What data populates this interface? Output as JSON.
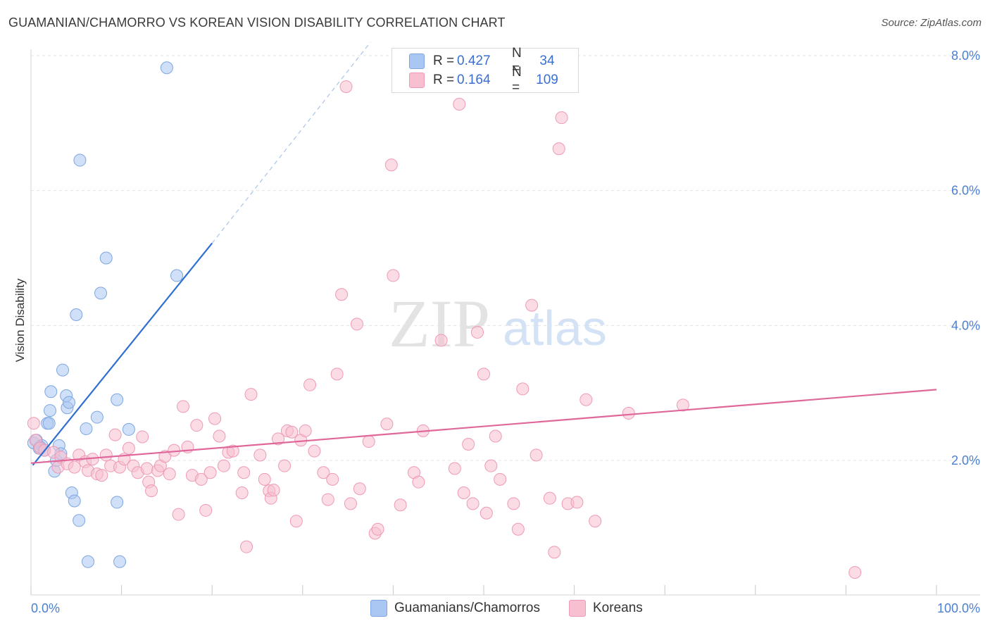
{
  "title": "GUAMANIAN/CHAMORRO VS KOREAN VISION DISABILITY CORRELATION CHART",
  "source": "Source: ZipAtlas.com",
  "watermark": {
    "zip": "ZIP",
    "atlas": "atlas"
  },
  "legend": {
    "rows": [
      {
        "r_label": "R =",
        "r_value": "0.427",
        "n_label": "N =",
        "n_value": "34",
        "color": "#a9c7f2",
        "border": "#7ea6e0"
      },
      {
        "r_label": "R =",
        "r_value": "0.164",
        "n_label": "N =",
        "n_value": "109",
        "color": "#f7bfd0",
        "border": "#ee9ab4"
      }
    ]
  },
  "bottom_legend": [
    {
      "label": "Guamanians/Chamorros",
      "color": "#a9c7f2",
      "border": "#7ea6e0"
    },
    {
      "label": "Koreans",
      "color": "#f7bfd0",
      "border": "#ee9ab4"
    }
  ],
  "chart_data": {
    "type": "scatter",
    "title": "GUAMANIAN/CHAMORRO VS KOREAN VISION DISABILITY CORRELATION CHART",
    "xlabel": "",
    "ylabel": "Vision Disability",
    "xlim": [
      0,
      100
    ],
    "ylim": [
      0,
      8.4
    ],
    "x_ticks": [
      "0.0%",
      "100.0%"
    ],
    "y_ticks": [
      {
        "value": 2,
        "label": "2.0%"
      },
      {
        "value": 4,
        "label": "4.0%"
      },
      {
        "value": 6,
        "label": "6.0%"
      },
      {
        "value": 8,
        "label": "8.0%"
      }
    ],
    "grid": true,
    "legend_position": "top-center",
    "series": [
      {
        "name": "Guamanians/Chamorros",
        "color": "#7ea6e0",
        "fill": "#a9c7f2",
        "trend": {
          "x0": 0.2,
          "y0": 1.93,
          "x1": 20,
          "y1": 5.22,
          "dashed_to_x": 37.5,
          "dashed_to_y": 8.2,
          "color": "#2f6fd0"
        },
        "points": [
          [
            0.3,
            2.26
          ],
          [
            0.6,
            2.3
          ],
          [
            0.9,
            2.18
          ],
          [
            1.2,
            2.22
          ],
          [
            1.5,
            2.15
          ],
          [
            1.8,
            2.55
          ],
          [
            2.1,
            2.74
          ],
          [
            2.2,
            3.02
          ],
          [
            2.6,
            1.84
          ],
          [
            2.8,
            2.0
          ],
          [
            3.1,
            2.22
          ],
          [
            3.3,
            2.1
          ],
          [
            3.5,
            3.34
          ],
          [
            3.9,
            2.96
          ],
          [
            4.0,
            2.78
          ],
          [
            4.2,
            2.86
          ],
          [
            4.5,
            1.52
          ],
          [
            4.8,
            1.4
          ],
          [
            5.0,
            4.16
          ],
          [
            5.3,
            1.11
          ],
          [
            5.4,
            6.45
          ],
          [
            6.1,
            2.47
          ],
          [
            6.3,
            0.5
          ],
          [
            7.3,
            2.64
          ],
          [
            7.7,
            4.48
          ],
          [
            8.3,
            5.0
          ],
          [
            9.5,
            2.9
          ],
          [
            9.5,
            1.38
          ],
          [
            9.8,
            0.5
          ],
          [
            10.8,
            2.46
          ],
          [
            15.0,
            7.82
          ],
          [
            16.1,
            4.74
          ],
          [
            1.0,
            2.2
          ],
          [
            2.0,
            2.55
          ]
        ]
      },
      {
        "name": "Koreans",
        "color": "#ee9ab4",
        "fill": "#f7bfd0",
        "trend": {
          "x0": 0,
          "y0": 1.96,
          "x1": 100,
          "y1": 3.05,
          "color": "#e0679a"
        },
        "points": [
          [
            0.3,
            2.55
          ],
          [
            0.5,
            2.3
          ],
          [
            1.0,
            2.18
          ],
          [
            1.5,
            2.15
          ],
          [
            2.5,
            2.12
          ],
          [
            3.0,
            1.9
          ],
          [
            3.3,
            2.05
          ],
          [
            4.0,
            1.95
          ],
          [
            4.8,
            1.9
          ],
          [
            5.3,
            2.08
          ],
          [
            6.0,
            1.98
          ],
          [
            6.3,
            1.85
          ],
          [
            6.8,
            2.02
          ],
          [
            7.3,
            1.8
          ],
          [
            7.8,
            1.78
          ],
          [
            8.3,
            2.08
          ],
          [
            8.8,
            1.92
          ],
          [
            9.3,
            2.38
          ],
          [
            9.8,
            1.9
          ],
          [
            10.3,
            2.02
          ],
          [
            10.8,
            2.18
          ],
          [
            11.3,
            1.92
          ],
          [
            11.8,
            1.82
          ],
          [
            12.3,
            2.35
          ],
          [
            12.8,
            1.88
          ],
          [
            13.0,
            1.68
          ],
          [
            13.3,
            1.55
          ],
          [
            14.0,
            1.85
          ],
          [
            14.3,
            1.92
          ],
          [
            14.8,
            2.06
          ],
          [
            15.3,
            1.8
          ],
          [
            15.8,
            2.15
          ],
          [
            16.3,
            1.2
          ],
          [
            16.8,
            2.8
          ],
          [
            17.3,
            2.2
          ],
          [
            17.8,
            1.78
          ],
          [
            18.3,
            2.52
          ],
          [
            18.8,
            1.72
          ],
          [
            19.3,
            1.26
          ],
          [
            19.8,
            1.82
          ],
          [
            20.3,
            2.62
          ],
          [
            20.8,
            2.36
          ],
          [
            21.3,
            1.92
          ],
          [
            21.8,
            2.12
          ],
          [
            22.3,
            2.14
          ],
          [
            23.3,
            1.52
          ],
          [
            23.5,
            1.82
          ],
          [
            23.8,
            0.72
          ],
          [
            24.3,
            2.98
          ],
          [
            25.3,
            2.08
          ],
          [
            25.8,
            1.72
          ],
          [
            26.3,
            1.55
          ],
          [
            26.5,
            1.44
          ],
          [
            26.8,
            1.56
          ],
          [
            27.3,
            2.32
          ],
          [
            28.0,
            1.92
          ],
          [
            28.3,
            2.44
          ],
          [
            28.8,
            2.42
          ],
          [
            29.3,
            1.1
          ],
          [
            29.8,
            2.3
          ],
          [
            30.3,
            2.44
          ],
          [
            30.8,
            3.12
          ],
          [
            31.3,
            2.14
          ],
          [
            32.3,
            1.82
          ],
          [
            32.8,
            1.42
          ],
          [
            33.3,
            1.72
          ],
          [
            33.8,
            3.28
          ],
          [
            34.3,
            4.46
          ],
          [
            34.8,
            7.54
          ],
          [
            35.3,
            1.36
          ],
          [
            36.0,
            4.02
          ],
          [
            36.3,
            1.58
          ],
          [
            37.3,
            2.28
          ],
          [
            38.0,
            0.92
          ],
          [
            38.3,
            0.98
          ],
          [
            39.3,
            2.54
          ],
          [
            39.8,
            6.38
          ],
          [
            40.0,
            4.74
          ],
          [
            40.8,
            1.34
          ],
          [
            42.3,
            1.82
          ],
          [
            42.8,
            1.68
          ],
          [
            43.3,
            2.44
          ],
          [
            45.3,
            3.78
          ],
          [
            46.8,
            1.88
          ],
          [
            47.3,
            7.28
          ],
          [
            47.8,
            1.52
          ],
          [
            48.3,
            2.24
          ],
          [
            48.8,
            1.36
          ],
          [
            49.3,
            3.9
          ],
          [
            50.0,
            3.28
          ],
          [
            50.3,
            1.22
          ],
          [
            50.8,
            1.92
          ],
          [
            51.3,
            2.36
          ],
          [
            51.8,
            1.72
          ],
          [
            53.3,
            1.36
          ],
          [
            53.8,
            0.98
          ],
          [
            54.3,
            3.06
          ],
          [
            55.3,
            4.3
          ],
          [
            55.8,
            2.08
          ],
          [
            57.3,
            1.44
          ],
          [
            57.8,
            0.64
          ],
          [
            58.3,
            6.62
          ],
          [
            58.6,
            7.08
          ],
          [
            59.3,
            1.36
          ],
          [
            60.3,
            1.38
          ],
          [
            61.3,
            2.9
          ],
          [
            62.3,
            1.1
          ],
          [
            66.0,
            2.7
          ],
          [
            72.0,
            2.82
          ],
          [
            91.0,
            0.34
          ]
        ]
      }
    ]
  }
}
